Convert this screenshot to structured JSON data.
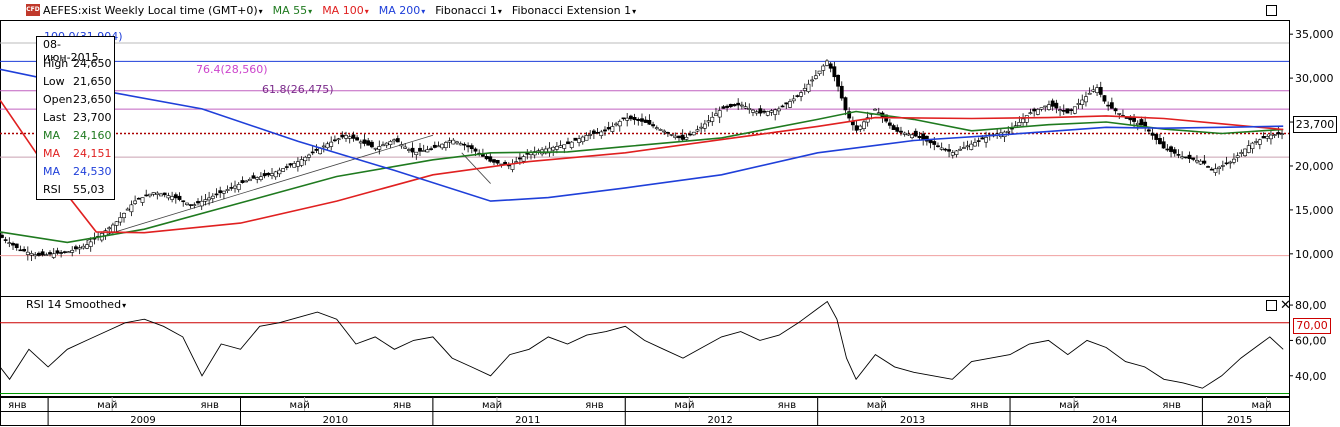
{
  "header": {
    "instrument_title": "AEFES:xist Weekly Local time (GMT+0)",
    "ma55_label": "MA 55",
    "ma100_label": "MA 100",
    "ma200_label": "MA 200",
    "fibonacci_label": "Fibonacci 1",
    "fib_ext_label": "Fibonacci Extension 1",
    "cfd_badge": "CFD",
    "caret": "▾"
  },
  "colors": {
    "ma55": "#1f7a1f",
    "ma100": "#e02020",
    "ma200": "#1f3fd9",
    "fib_text": "#cc44cc",
    "fib_text_2": "#7a2a8a",
    "fib_line_blue": "#9aa8e8",
    "fib_line_magenta": "#c060c0",
    "fib_line_pink": "#f0a0a0",
    "candle": "#000000",
    "rsi_line": "#000000",
    "rsi_70": "#cc0000",
    "rsi_30": "#009900"
  },
  "info_box": {
    "date": "08-июн-2015",
    "rows": [
      {
        "k": "High",
        "v": "24,650",
        "color": "#000000"
      },
      {
        "k": "Low",
        "v": "21,650",
        "color": "#000000"
      },
      {
        "k": "Open",
        "v": "23,650",
        "color": "#000000"
      },
      {
        "k": "Last",
        "v": "23,700",
        "color": "#000000"
      },
      {
        "k": "MA",
        "v": "24,160",
        "color": "#1f7a1f"
      },
      {
        "k": "MA",
        "v": "24,151",
        "color": "#e02020"
      },
      {
        "k": "MA",
        "v": "24,530",
        "color": "#1f3fd9"
      },
      {
        "k": "RSI",
        "v": "55,03",
        "color": "#000000"
      }
    ]
  },
  "fib_labels": {
    "level_100": "100.0(31,904)",
    "level_764": "76.4(28,560)",
    "level_618": "61.8(26,475)"
  },
  "current_price": "23,700",
  "rsi_panel": {
    "title": "RSI 14 Smoothed",
    "level_70_label": "70,00"
  },
  "chart_data": [
    {
      "type": "candlestick",
      "title": "AEFES:xist Weekly Local time (GMT+0)",
      "yaxis_ticks": [
        10000,
        15000,
        20000,
        25000,
        30000,
        35000
      ],
      "yaxis_tick_labels": [
        "10,000",
        "15,000",
        "20,000",
        "25,000",
        "30,000",
        "35,000"
      ],
      "ylim": [
        5200,
        36500
      ],
      "x_time_range": [
        2008.75,
        2015.45
      ],
      "x_month_ticks": [
        {
          "t": 2009.0,
          "label": "янв"
        },
        {
          "t": 2009.333,
          "label": "май"
        },
        {
          "t": 2010.0,
          "label": "янв"
        },
        {
          "t": 2010.333,
          "label": "май"
        },
        {
          "t": 2011.0,
          "label": "янв"
        },
        {
          "t": 2011.333,
          "label": "май"
        },
        {
          "t": 2012.0,
          "label": "янв"
        },
        {
          "t": 2012.333,
          "label": "май"
        },
        {
          "t": 2013.0,
          "label": "янв"
        },
        {
          "t": 2013.333,
          "label": "май"
        },
        {
          "t": 2014.0,
          "label": "янв"
        },
        {
          "t": 2014.333,
          "label": "май"
        },
        {
          "t": 2015.0,
          "label": "янв"
        },
        {
          "t": 2015.333,
          "label": "май"
        }
      ],
      "x_year_labels": [
        {
          "t": 2009.5,
          "label": "2009"
        },
        {
          "t": 2010.5,
          "label": "2010"
        },
        {
          "t": 2011.5,
          "label": "2011"
        },
        {
          "t": 2012.5,
          "label": "2012"
        },
        {
          "t": 2013.5,
          "label": "2013"
        },
        {
          "t": 2014.5,
          "label": "2014"
        },
        {
          "t": 2015.2,
          "label": "2015"
        }
      ],
      "price_path": [
        [
          2008.75,
          12000
        ],
        [
          2008.85,
          10500
        ],
        [
          2008.95,
          9800
        ],
        [
          2009.1,
          10200
        ],
        [
          2009.2,
          11000
        ],
        [
          2009.35,
          13500
        ],
        [
          2009.45,
          16000
        ],
        [
          2009.55,
          17000
        ],
        [
          2009.65,
          16500
        ],
        [
          2009.75,
          15500
        ],
        [
          2009.85,
          16500
        ],
        [
          2009.95,
          17500
        ],
        [
          2010.05,
          18500
        ],
        [
          2010.15,
          19000
        ],
        [
          2010.3,
          20500
        ],
        [
          2010.45,
          22500
        ],
        [
          2010.55,
          23500
        ],
        [
          2010.7,
          22000
        ],
        [
          2010.8,
          23000
        ],
        [
          2010.9,
          21500
        ],
        [
          2011.0,
          22000
        ],
        [
          2011.1,
          23000
        ],
        [
          2011.2,
          22000
        ],
        [
          2011.3,
          20500
        ],
        [
          2011.4,
          20000
        ],
        [
          2011.5,
          21500
        ],
        [
          2011.6,
          22000
        ],
        [
          2011.7,
          22500
        ],
        [
          2011.8,
          23500
        ],
        [
          2011.9,
          24000
        ],
        [
          2012.0,
          25500
        ],
        [
          2012.1,
          25000
        ],
        [
          2012.2,
          24000
        ],
        [
          2012.3,
          23000
        ],
        [
          2012.4,
          24500
        ],
        [
          2012.5,
          26500
        ],
        [
          2012.6,
          27000
        ],
        [
          2012.7,
          26000
        ],
        [
          2012.8,
          26500
        ],
        [
          2012.9,
          28000
        ],
        [
          2013.0,
          30500
        ],
        [
          2013.05,
          32000
        ],
        [
          2013.1,
          29500
        ],
        [
          2013.15,
          26000
        ],
        [
          2013.2,
          24000
        ],
        [
          2013.3,
          26500
        ],
        [
          2013.4,
          24000
        ],
        [
          2013.5,
          23500
        ],
        [
          2013.6,
          22500
        ],
        [
          2013.7,
          21500
        ],
        [
          2013.8,
          22500
        ],
        [
          2013.9,
          23500
        ],
        [
          2014.0,
          24000
        ],
        [
          2014.1,
          26000
        ],
        [
          2014.2,
          27000
        ],
        [
          2014.3,
          26000
        ],
        [
          2014.4,
          28000
        ],
        [
          2014.45,
          29000
        ],
        [
          2014.5,
          27000
        ],
        [
          2014.6,
          25500
        ],
        [
          2014.7,
          24500
        ],
        [
          2014.8,
          22000
        ],
        [
          2014.9,
          21000
        ],
        [
          2015.0,
          20500
        ],
        [
          2015.05,
          19500
        ],
        [
          2015.15,
          20500
        ],
        [
          2015.25,
          22500
        ],
        [
          2015.35,
          23500
        ],
        [
          2015.42,
          23700
        ]
      ],
      "series": [
        {
          "name": "MA 55",
          "color": "#1f7a1f",
          "points": [
            [
              2008.75,
              12500
            ],
            [
              2009.1,
              11300
            ],
            [
              2009.5,
              12800
            ],
            [
              2010.0,
              15800
            ],
            [
              2010.5,
              18800
            ],
            [
              2011.0,
              20700
            ],
            [
              2011.3,
              21500
            ],
            [
              2011.7,
              21600
            ],
            [
              2012.0,
              22200
            ],
            [
              2012.5,
              23200
            ],
            [
              2013.0,
              25300
            ],
            [
              2013.2,
              26200
            ],
            [
              2013.5,
              25300
            ],
            [
              2013.8,
              24000
            ],
            [
              2014.2,
              24700
            ],
            [
              2014.5,
              25000
            ],
            [
              2014.8,
              24200
            ],
            [
              2015.1,
              23700
            ],
            [
              2015.42,
              24160
            ]
          ]
        },
        {
          "name": "MA 100",
          "color": "#e02020",
          "points": [
            [
              2008.75,
              27500
            ],
            [
              2009.0,
              19500
            ],
            [
              2009.25,
              12500
            ],
            [
              2009.5,
              12400
            ],
            [
              2010.0,
              13500
            ],
            [
              2010.5,
              16000
            ],
            [
              2011.0,
              19000
            ],
            [
              2011.5,
              20500
            ],
            [
              2012.0,
              21500
            ],
            [
              2012.5,
              23000
            ],
            [
              2013.0,
              24500
            ],
            [
              2013.3,
              25500
            ],
            [
              2013.8,
              25400
            ],
            [
              2014.2,
              25500
            ],
            [
              2014.5,
              25700
            ],
            [
              2014.8,
              25400
            ],
            [
              2015.1,
              24800
            ],
            [
              2015.42,
              24151
            ]
          ]
        },
        {
          "name": "MA 200",
          "color": "#1f3fd9",
          "points": [
            [
              2008.75,
              31000
            ],
            [
              2009.3,
              28500
            ],
            [
              2009.8,
              26500
            ],
            [
              2010.3,
              22800
            ],
            [
              2010.8,
              19500
            ],
            [
              2011.3,
              16000
            ],
            [
              2011.6,
              16400
            ],
            [
              2012.0,
              17500
            ],
            [
              2012.5,
              19000
            ],
            [
              2013.0,
              21500
            ],
            [
              2013.5,
              22900
            ],
            [
              2014.0,
              23600
            ],
            [
              2014.5,
              24400
            ],
            [
              2014.8,
              24300
            ],
            [
              2015.1,
              24400
            ],
            [
              2015.42,
              24530
            ]
          ]
        }
      ]
    },
    {
      "type": "line",
      "title": "RSI 14 Smoothed",
      "yaxis_ticks": [
        40,
        60,
        80
      ],
      "yaxis_tick_labels": [
        "40,00",
        "60,00",
        "80,00"
      ],
      "ylim": [
        28,
        84
      ],
      "levels": [
        70,
        30
      ],
      "series": [
        {
          "name": "RSI 14 Smoothed",
          "color": "#000000",
          "points": [
            [
              2008.75,
              45
            ],
            [
              2008.8,
              38
            ],
            [
              2008.9,
              55
            ],
            [
              2009.0,
              45
            ],
            [
              2009.1,
              55
            ],
            [
              2009.2,
              60
            ],
            [
              2009.3,
              65
            ],
            [
              2009.4,
              70
            ],
            [
              2009.5,
              72
            ],
            [
              2009.6,
              68
            ],
            [
              2009.7,
              62
            ],
            [
              2009.8,
              40
            ],
            [
              2009.9,
              58
            ],
            [
              2010.0,
              55
            ],
            [
              2010.1,
              68
            ],
            [
              2010.2,
              70
            ],
            [
              2010.3,
              73
            ],
            [
              2010.4,
              76
            ],
            [
              2010.5,
              72
            ],
            [
              2010.6,
              58
            ],
            [
              2010.7,
              62
            ],
            [
              2010.8,
              55
            ],
            [
              2010.9,
              60
            ],
            [
              2011.0,
              62
            ],
            [
              2011.1,
              50
            ],
            [
              2011.2,
              45
            ],
            [
              2011.3,
              40
            ],
            [
              2011.4,
              52
            ],
            [
              2011.5,
              55
            ],
            [
              2011.6,
              62
            ],
            [
              2011.7,
              58
            ],
            [
              2011.8,
              63
            ],
            [
              2011.9,
              65
            ],
            [
              2012.0,
              68
            ],
            [
              2012.1,
              60
            ],
            [
              2012.2,
              55
            ],
            [
              2012.3,
              50
            ],
            [
              2012.4,
              56
            ],
            [
              2012.5,
              62
            ],
            [
              2012.6,
              65
            ],
            [
              2012.7,
              60
            ],
            [
              2012.8,
              63
            ],
            [
              2012.9,
              70
            ],
            [
              2013.0,
              78
            ],
            [
              2013.05,
              82
            ],
            [
              2013.1,
              72
            ],
            [
              2013.15,
              50
            ],
            [
              2013.2,
              38
            ],
            [
              2013.3,
              52
            ],
            [
              2013.4,
              45
            ],
            [
              2013.5,
              42
            ],
            [
              2013.6,
              40
            ],
            [
              2013.7,
              38
            ],
            [
              2013.8,
              48
            ],
            [
              2013.9,
              50
            ],
            [
              2014.0,
              52
            ],
            [
              2014.1,
              58
            ],
            [
              2014.2,
              60
            ],
            [
              2014.3,
              52
            ],
            [
              2014.4,
              60
            ],
            [
              2014.5,
              56
            ],
            [
              2014.6,
              48
            ],
            [
              2014.7,
              45
            ],
            [
              2014.8,
              38
            ],
            [
              2014.9,
              36
            ],
            [
              2015.0,
              33
            ],
            [
              2015.1,
              40
            ],
            [
              2015.2,
              50
            ],
            [
              2015.3,
              58
            ],
            [
              2015.35,
              62
            ],
            [
              2015.42,
              55
            ]
          ]
        }
      ]
    }
  ]
}
